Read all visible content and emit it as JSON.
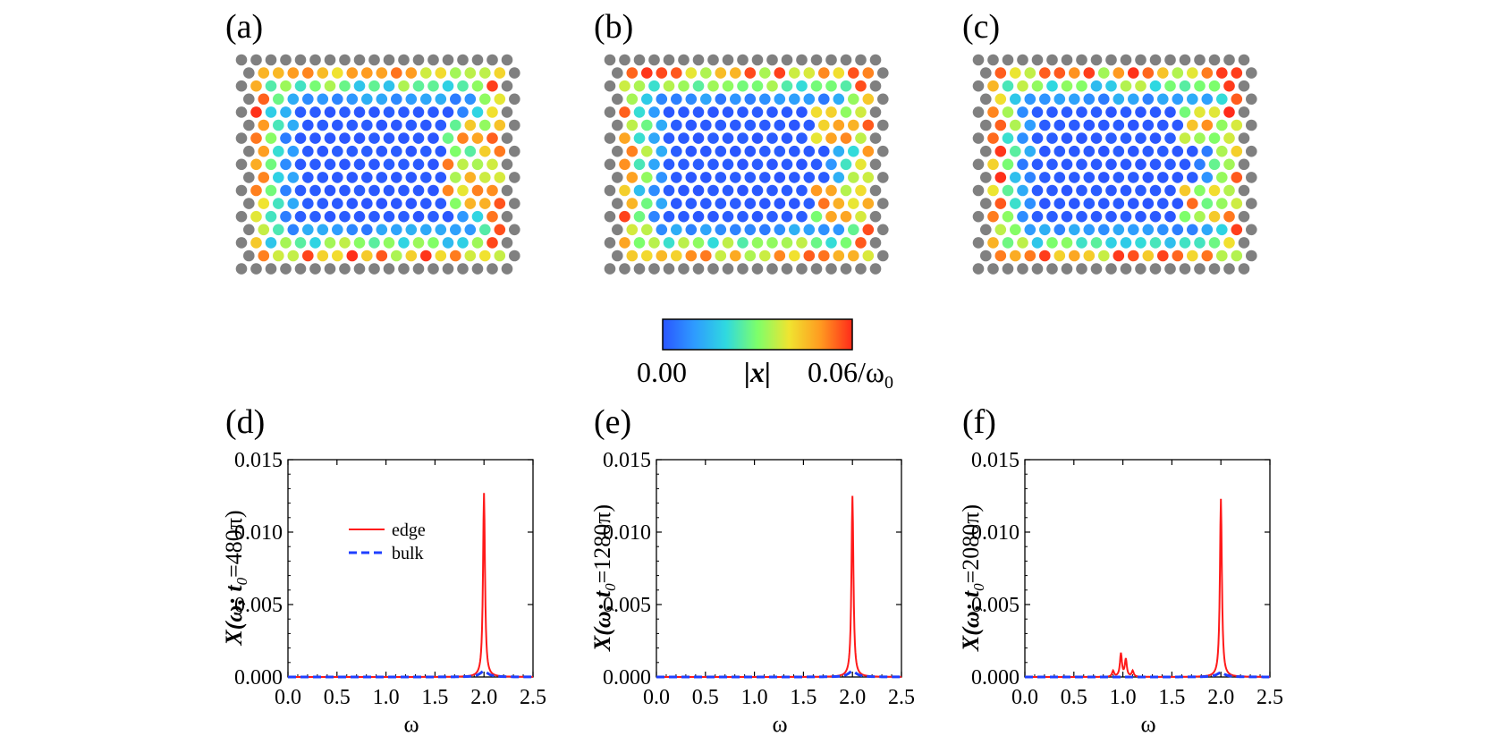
{
  "lattice_panels": [
    {
      "label": "(a)",
      "defect": "right-middle"
    },
    {
      "label": "(b)",
      "defect": "right-top-bottom"
    },
    {
      "label": "(c)",
      "defect": "right-top-bottom"
    }
  ],
  "colorbar": {
    "min_label": "0.00",
    "mid_label": "|x|",
    "max_label": "0.06/ω",
    "max_sub": "0",
    "colors": [
      "#2a55ff",
      "#2e9bff",
      "#2fd9e0",
      "#7dff6a",
      "#f0e430",
      "#ff9a20",
      "#ff2a1a"
    ]
  },
  "colors": {
    "edge": "#ff1a1a",
    "bulk": "#1f3fff",
    "gray": "#808080"
  },
  "chart_data": [
    {
      "type": "line",
      "label": "(d)",
      "ylabel_prefix": "X(ω; t",
      "ylabel_sub": "0",
      "ylabel_suffix": "=480π)",
      "xlabel": "ω",
      "xlim": [
        0.0,
        2.5
      ],
      "ylim": [
        0.0,
        0.015
      ],
      "xticks": [
        "0.0",
        "0.5",
        "1.0",
        "1.5",
        "2.0",
        "2.5"
      ],
      "yticks": [
        "0.000",
        "0.005",
        "0.010",
        "0.015"
      ],
      "legend": {
        "position": "center-left",
        "entries": [
          "edge",
          "bulk"
        ]
      },
      "series": [
        {
          "name": "edge",
          "peaks": [
            {
              "center": 2.0,
              "height": 0.0127
            }
          ],
          "baseline": 0.0
        },
        {
          "name": "bulk",
          "peaks": [
            {
              "center": 2.0,
              "height": 0.0004
            }
          ],
          "baseline": 0.0
        }
      ]
    },
    {
      "type": "line",
      "label": "(e)",
      "ylabel_prefix": "X(ω; t",
      "ylabel_sub": "0",
      "ylabel_suffix": "=1280π)",
      "xlabel": "ω",
      "xlim": [
        0.0,
        2.5
      ],
      "ylim": [
        0.0,
        0.015
      ],
      "xticks": [
        "0.0",
        "0.5",
        "1.0",
        "1.5",
        "2.0",
        "2.5"
      ],
      "yticks": [
        "0.000",
        "0.005",
        "0.010",
        "0.015"
      ],
      "series": [
        {
          "name": "edge",
          "peaks": [
            {
              "center": 2.0,
              "height": 0.0125
            }
          ],
          "baseline": 0.0
        },
        {
          "name": "bulk",
          "peaks": [
            {
              "center": 2.0,
              "height": 0.0004
            }
          ],
          "baseline": 0.0
        }
      ]
    },
    {
      "type": "line",
      "label": "(f)",
      "ylabel_prefix": "X(ω; t",
      "ylabel_sub": "0",
      "ylabel_suffix": "=2080π)",
      "xlabel": "ω",
      "xlim": [
        0.0,
        2.5
      ],
      "ylim": [
        0.0,
        0.015
      ],
      "xticks": [
        "0.0",
        "0.5",
        "1.0",
        "1.5",
        "2.0",
        "2.5"
      ],
      "yticks": [
        "0.000",
        "0.005",
        "0.010",
        "0.015"
      ],
      "series": [
        {
          "name": "edge",
          "peaks": [
            {
              "center": 2.0,
              "height": 0.0123
            },
            {
              "center": 0.98,
              "height": 0.0016
            },
            {
              "center": 1.03,
              "height": 0.0012
            },
            {
              "center": 0.9,
              "height": 0.0004
            },
            {
              "center": 1.1,
              "height": 0.0004
            }
          ],
          "baseline": 0.0
        },
        {
          "name": "bulk",
          "peaks": [
            {
              "center": 2.0,
              "height": 0.0003
            }
          ],
          "baseline": 0.0
        }
      ]
    }
  ]
}
